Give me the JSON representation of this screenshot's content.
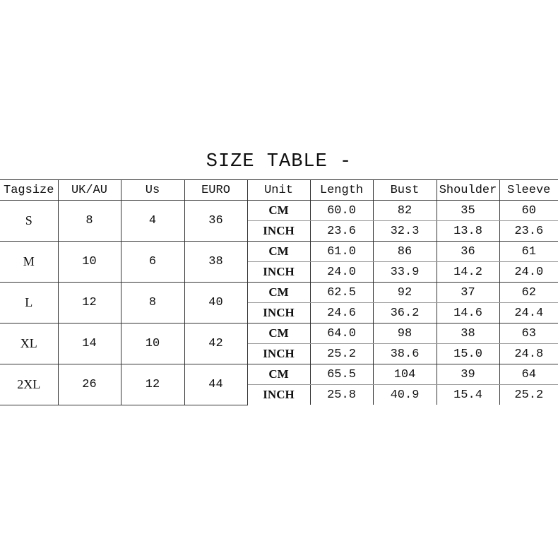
{
  "title": "SIZE TABLE -",
  "headers": [
    "Tagsize",
    "UK/AU",
    "Us",
    "EURO",
    "Unit",
    "Length",
    "Bust",
    "Shoulder",
    "Sleeve"
  ],
  "rows": [
    {
      "tag": "S",
      "uk": "8",
      "us": "4",
      "euro": "36",
      "cm": {
        "unit": "CM",
        "values": [
          "60.0",
          "82",
          "35",
          "60"
        ]
      },
      "inch": {
        "unit": "INCH",
        "values": [
          "23.6",
          "32.3",
          "13.8",
          "23.6"
        ]
      }
    },
    {
      "tag": "M",
      "uk": "10",
      "us": "6",
      "euro": "38",
      "cm": {
        "unit": "CM",
        "values": [
          "61.0",
          "86",
          "36",
          "61"
        ]
      },
      "inch": {
        "unit": "INCH",
        "values": [
          "24.0",
          "33.9",
          "14.2",
          "24.0"
        ]
      }
    },
    {
      "tag": "L",
      "uk": "12",
      "us": "8",
      "euro": "40",
      "cm": {
        "unit": "CM",
        "values": [
          "62.5",
          "92",
          "37",
          "62"
        ]
      },
      "inch": {
        "unit": "INCH",
        "values": [
          "24.6",
          "36.2",
          "14.6",
          "24.4"
        ]
      }
    },
    {
      "tag": "XL",
      "uk": "14",
      "us": "10",
      "euro": "42",
      "cm": {
        "unit": "CM",
        "values": [
          "64.0",
          "98",
          "38",
          "63"
        ]
      },
      "inch": {
        "unit": "INCH",
        "values": [
          "25.2",
          "38.6",
          "15.0",
          "24.8"
        ]
      }
    },
    {
      "tag": "2XL",
      "uk": "26",
      "us": "12",
      "euro": "44",
      "cm": {
        "unit": "CM",
        "values": [
          "65.5",
          "104",
          "39",
          "64"
        ]
      },
      "inch": {
        "unit": "INCH",
        "values": [
          "25.8",
          "40.9",
          "15.4",
          "25.2"
        ]
      }
    }
  ]
}
